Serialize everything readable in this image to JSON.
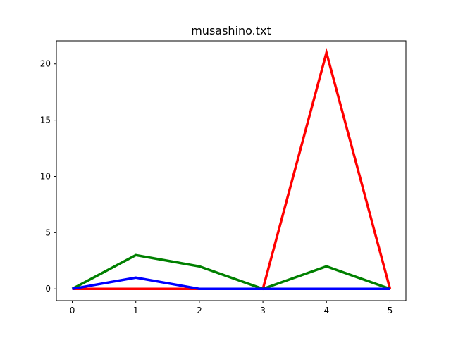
{
  "chart_data": {
    "type": "line",
    "title": "musashino.txt",
    "xlabel": "",
    "ylabel": "",
    "x": [
      0,
      1,
      2,
      3,
      4,
      5
    ],
    "xlim": [
      -0.25,
      5.25
    ],
    "ylim": [
      -1.05,
      22.05
    ],
    "xticks": [
      0,
      1,
      2,
      3,
      4,
      5
    ],
    "yticks": [
      0,
      5,
      10,
      15,
      20
    ],
    "grid": false,
    "legend": "none",
    "series": [
      {
        "color": "#ff0000",
        "values": [
          0,
          0,
          0,
          0,
          21,
          0
        ]
      },
      {
        "color": "#008000",
        "values": [
          0,
          3,
          2,
          0,
          2,
          0
        ]
      },
      {
        "color": "#0000ff",
        "values": [
          0,
          1,
          0,
          0,
          0,
          0
        ]
      }
    ]
  }
}
